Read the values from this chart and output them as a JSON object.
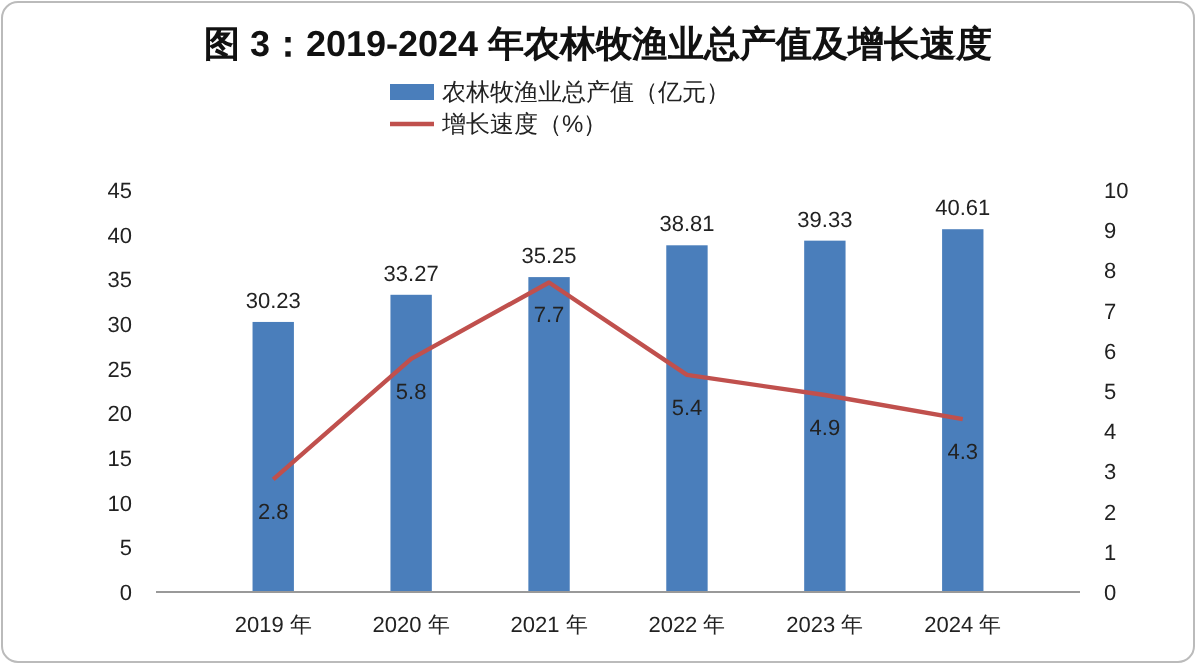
{
  "chart_data": {
    "type": "bar",
    "title": "图 3：2019-2024 年农林牧渔业总产值及增长速度",
    "categories": [
      "2019 年",
      "2020 年",
      "2021 年",
      "2022 年",
      "2023 年",
      "2024 年"
    ],
    "series": [
      {
        "name": "农林牧渔业总产值（亿元）",
        "color": "#4a7ebb",
        "values": [
          30.23,
          33.27,
          35.25,
          38.81,
          39.33,
          40.61
        ]
      },
      {
        "name": "增长速度（%）",
        "type": "line",
        "axis": "y2",
        "color": "#c0504d",
        "values": [
          2.8,
          5.8,
          7.7,
          5.4,
          4.9,
          4.3
        ]
      }
    ],
    "ylim": [
      0,
      45
    ],
    "yticks": [
      0,
      5,
      10,
      15,
      20,
      25,
      30,
      35,
      40,
      45
    ],
    "y2lim": [
      0,
      10
    ],
    "y2ticks": [
      0,
      1,
      2,
      3,
      4,
      5,
      6,
      7,
      8,
      9,
      10
    ],
    "data_labels": true,
    "legend": "top",
    "grid": false,
    "marker": "none",
    "line_style": "solid"
  }
}
